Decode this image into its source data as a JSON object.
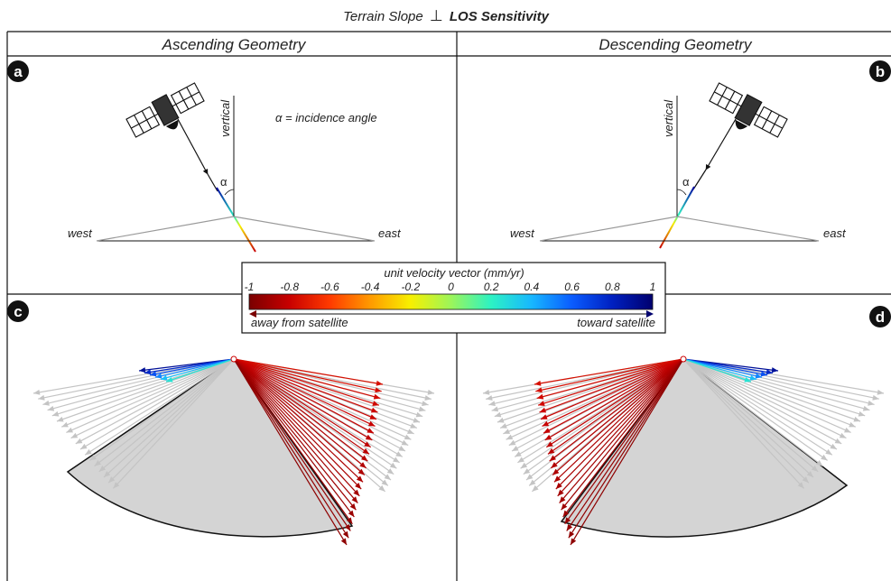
{
  "title": {
    "prefix": "Terrain Slope",
    "symbol": "⊥",
    "suffix": "LOS Sensitivity"
  },
  "columns": {
    "left_title": "Ascending Geometry",
    "right_title": "Descending Geometry"
  },
  "panels": {
    "a": {
      "letter": "a"
    },
    "b": {
      "letter": "b"
    },
    "c": {
      "letter": "c"
    },
    "d": {
      "letter": "d"
    }
  },
  "labels": {
    "vertical": "vertical",
    "alpha": "α",
    "incidence": "α = incidence angle",
    "west": "west",
    "east": "east"
  },
  "colorbar": {
    "title": "unit velocity vector (mm/yr)",
    "ticks": [
      "-1",
      "-0.8",
      "-0.6",
      "-0.4",
      "-0.2",
      "0",
      "0.2",
      "0.4",
      "0.6",
      "0.8",
      "1"
    ],
    "min": -1,
    "max": 1,
    "left_label": "away from satellite",
    "right_label": "toward satellite",
    "colors": [
      "#7a0000",
      "#c80000",
      "#ff3a00",
      "#ff9a00",
      "#f7f000",
      "#9cf55a",
      "#2cf2c4",
      "#17b7ff",
      "#0a5cff",
      "#0020c0",
      "#00006e"
    ]
  },
  "colors": {
    "slope_fill": "#d4d4d4",
    "frame": "#111111",
    "neutral_arrow": "#c4c4c4"
  }
}
